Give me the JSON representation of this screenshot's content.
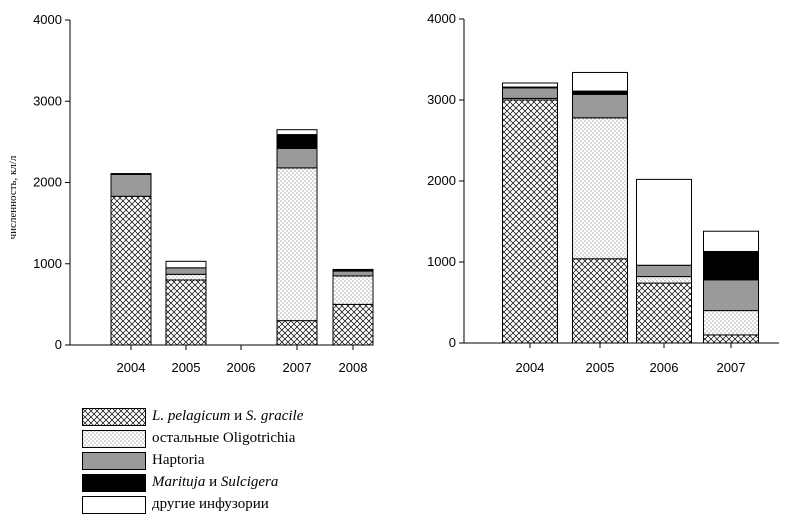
{
  "chart_data": [
    {
      "type": "bar",
      "stacked": true,
      "ylabel": "численность, кл/л",
      "ylim": [
        0,
        4000
      ],
      "yticks": [
        "0",
        "1000",
        "2000",
        "3000",
        "4000"
      ],
      "categories": [
        "2004",
        "2005",
        "2006",
        "2007",
        "2008"
      ],
      "series": [
        {
          "name": "L. pelagicum и S. gracile",
          "values": [
            1830,
            800,
            0,
            300,
            500
          ]
        },
        {
          "name": "остальные Oligotrichia",
          "values": [
            0,
            70,
            0,
            1880,
            350
          ]
        },
        {
          "name": "Haptoria",
          "values": [
            270,
            80,
            0,
            240,
            60
          ]
        },
        {
          "name": "Marituja и Sulcigera",
          "values": [
            10,
            0,
            0,
            170,
            20
          ]
        },
        {
          "name": "другие инфузории",
          "values": [
            0,
            80,
            0,
            60,
            0
          ]
        }
      ]
    },
    {
      "type": "bar",
      "stacked": true,
      "ylabel": "",
      "ylim": [
        0,
        4000
      ],
      "yticks": [
        "0",
        "1000",
        "2000",
        "3000",
        "4000"
      ],
      "categories": [
        "2004",
        "2005",
        "2006",
        "2007"
      ],
      "series": [
        {
          "name": "L. pelagicum и S. gracile",
          "values": [
            3000,
            1040,
            740,
            100
          ]
        },
        {
          "name": "остальные Oligotrichia",
          "values": [
            20,
            1740,
            80,
            300
          ]
        },
        {
          "name": "Haptoria",
          "values": [
            130,
            290,
            140,
            380
          ]
        },
        {
          "name": "Marituja и Sulcigera",
          "values": [
            10,
            40,
            0,
            350
          ]
        },
        {
          "name": "другие инфузории",
          "values": [
            50,
            230,
            1060,
            250
          ]
        }
      ]
    }
  ],
  "legend": [
    {
      "pattern": "crosshatch",
      "text_main": "L. pelagicum",
      "text_mid": " и ",
      "text_end": "S. gracile"
    },
    {
      "pattern": "dots",
      "text_main": "остальные Oligotrichia",
      "text_mid": "",
      "text_end": ""
    },
    {
      "pattern": "gray",
      "text_main": "Haptoria",
      "text_mid": "",
      "text_end": ""
    },
    {
      "pattern": "black",
      "text_main": "Marituja",
      "text_mid": " и ",
      "text_end": "Sulcigera"
    },
    {
      "pattern": "white",
      "text_main": "другие инфузории",
      "text_mid": "",
      "text_end": ""
    }
  ],
  "colors": {
    "haptoria": "#9a9a9a",
    "marituja": "#000000",
    "white": "#ffffff",
    "edge": "#000000"
  }
}
